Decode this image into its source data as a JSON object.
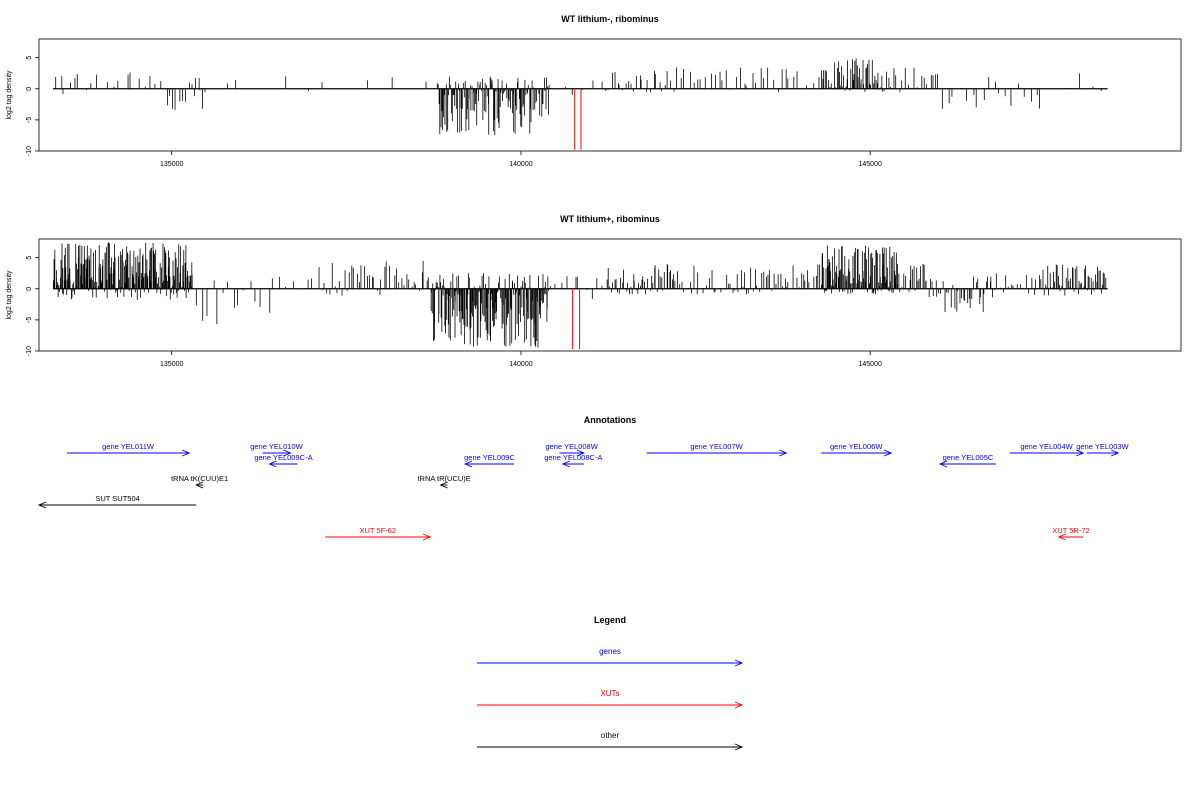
{
  "colors": {
    "gene": "#0000ff",
    "xut": "#ff0000",
    "other": "#000000",
    "bars": "#000000"
  },
  "chart_data": [
    {
      "type": "bar",
      "title": "WT lithium-, ribominus",
      "ylabel": "log2 tag density",
      "xlim": [
        133100,
        149450
      ],
      "ylim": [
        -10,
        8
      ],
      "x_ticks": [
        135000,
        140000,
        145000
      ],
      "y_ticks": [
        -10,
        -5,
        0,
        5
      ],
      "x_tick_labels": [
        "135000",
        "140000",
        "145000"
      ],
      "y_tick_labels": [
        "-10",
        "-5",
        "0",
        "5"
      ],
      "data_range": [
        133300,
        148400
      ],
      "segments": [
        {
          "from": 133300,
          "to": 133700,
          "count": 6,
          "min": -2,
          "max": 3
        },
        {
          "from": 133700,
          "to": 134300,
          "count": 6,
          "min": -3,
          "max": 2.5
        },
        {
          "from": 134300,
          "to": 134900,
          "count": 7,
          "min": -2,
          "max": 3
        },
        {
          "from": 134900,
          "to": 135500,
          "count": 18,
          "min": -4,
          "max": 2.5
        },
        {
          "from": 135500,
          "to": 138800,
          "count": 8,
          "min": -2,
          "max": 2
        },
        {
          "from": 138800,
          "to": 140400,
          "count": 130,
          "min": -7.5,
          "max": 2
        },
        {
          "from": 140400,
          "to": 141200,
          "count": 6,
          "min": -2,
          "max": 2
        },
        {
          "from": 141200,
          "to": 142200,
          "count": 25,
          "min": -1,
          "max": 3
        },
        {
          "from": 142200,
          "to": 144300,
          "count": 35,
          "min": -1,
          "max": 3.5
        },
        {
          "from": 144300,
          "to": 145200,
          "count": 60,
          "min": -1,
          "max": 5
        },
        {
          "from": 145200,
          "to": 146000,
          "count": 20,
          "min": -1,
          "max": 3.5
        },
        {
          "from": 146000,
          "to": 147500,
          "count": 18,
          "min": -3.5,
          "max": 2.5
        },
        {
          "from": 147500,
          "to": 148400,
          "count": 5,
          "min": -1,
          "max": 3
        }
      ],
      "highlight": [
        {
          "x": 140770,
          "y": -9.8
        },
        {
          "x": 140860,
          "y": -9.8
        }
      ]
    },
    {
      "type": "bar",
      "title": "WT lithium+, ribominus",
      "ylabel": "log2 tag density",
      "xlim": [
        133100,
        149450
      ],
      "ylim": [
        -10,
        8
      ],
      "x_ticks": [
        135000,
        140000,
        145000
      ],
      "y_ticks": [
        -10,
        -5,
        0,
        5
      ],
      "x_tick_labels": [
        "135000",
        "140000",
        "145000"
      ],
      "y_tick_labels": [
        "-10",
        "-5",
        "0",
        "5"
      ],
      "data_range": [
        133300,
        148400
      ],
      "segments": [
        {
          "from": 133300,
          "to": 135300,
          "count": 230,
          "min": -3,
          "max": 7.5
        },
        {
          "from": 135300,
          "to": 136500,
          "count": 15,
          "min": -6,
          "max": 2
        },
        {
          "from": 136500,
          "to": 137100,
          "count": 6,
          "min": -1,
          "max": 3.5
        },
        {
          "from": 137100,
          "to": 138700,
          "count": 45,
          "min": -2,
          "max": 4.5
        },
        {
          "from": 138700,
          "to": 140400,
          "count": 190,
          "min": -9.5,
          "max": 2.5
        },
        {
          "from": 140400,
          "to": 141200,
          "count": 10,
          "min": -3,
          "max": 3
        },
        {
          "from": 141200,
          "to": 142200,
          "count": 50,
          "min": -1.5,
          "max": 4
        },
        {
          "from": 142200,
          "to": 144300,
          "count": 70,
          "min": -1.5,
          "max": 4
        },
        {
          "from": 144300,
          "to": 145400,
          "count": 120,
          "min": -1.5,
          "max": 7
        },
        {
          "from": 145400,
          "to": 145800,
          "count": 20,
          "min": -1,
          "max": 4
        },
        {
          "from": 145800,
          "to": 146800,
          "count": 40,
          "min": -4,
          "max": 2
        },
        {
          "from": 146800,
          "to": 147400,
          "count": 15,
          "min": -2,
          "max": 2.5
        },
        {
          "from": 147400,
          "to": 148400,
          "count": 60,
          "min": -2,
          "max": 4
        }
      ],
      "highlight": [
        {
          "x": 140740,
          "y": -9.7
        },
        {
          "x": 140840,
          "y": -9.7
        }
      ]
    }
  ],
  "annotations": {
    "title": "Annotations",
    "features": [
      {
        "label": "gene YEL011W",
        "kind": "gene",
        "start": 133500,
        "end": 135250,
        "row": 0
      },
      {
        "label": "gene YEL010W",
        "kind": "gene",
        "start": 136300,
        "end": 136700,
        "row": 0
      },
      {
        "label": "gene YEL009C-A",
        "kind": "gene",
        "start": 136400,
        "end": 136800,
        "row": 1
      },
      {
        "label": "tRNA tK(CUU)E1",
        "kind": "other",
        "start": 135350,
        "end": 135450,
        "row": 2
      },
      {
        "label": "SUT SUT504",
        "kind": "other",
        "start": 133100,
        "end": 135350,
        "row": 3
      },
      {
        "label": "gene YEL009C",
        "kind": "gene",
        "start": 139200,
        "end": 139900,
        "row": 1
      },
      {
        "label": "tRNA tR(UCU)E",
        "kind": "other",
        "start": 138850,
        "end": 138950,
        "row": 2
      },
      {
        "label": "gene YEL008W",
        "kind": "gene",
        "start": 140550,
        "end": 140900,
        "row": 0
      },
      {
        "label": "gene YEL008C-A",
        "kind": "gene",
        "start": 140600,
        "end": 140900,
        "row": 1
      },
      {
        "label": "gene YEL007W",
        "kind": "gene",
        "start": 141800,
        "end": 143800,
        "row": 0
      },
      {
        "label": "gene YEL006W",
        "kind": "gene",
        "start": 144300,
        "end": 145300,
        "row": 0
      },
      {
        "label": "gene YEL005C",
        "kind": "gene",
        "start": 146000,
        "end": 146800,
        "row": 1
      },
      {
        "label": "gene YEL004W",
        "kind": "gene",
        "start": 147000,
        "end": 148050,
        "row": 0
      },
      {
        "label": "gene YEL003W",
        "kind": "gene",
        "start": 148100,
        "end": 148550,
        "row": 0
      },
      {
        "label": "XUT 5F-62",
        "kind": "xut",
        "start": 137200,
        "end": 138700,
        "row": 5
      },
      {
        "label": "XUT 5R-72",
        "kind": "xut",
        "start": 147700,
        "end": 148050,
        "row": 5
      }
    ]
  },
  "legend": {
    "title": "Legend",
    "items": [
      {
        "label": "genes",
        "kind": "gene"
      },
      {
        "label": "XUTs",
        "kind": "xut"
      },
      {
        "label": "other",
        "kind": "other"
      }
    ]
  }
}
